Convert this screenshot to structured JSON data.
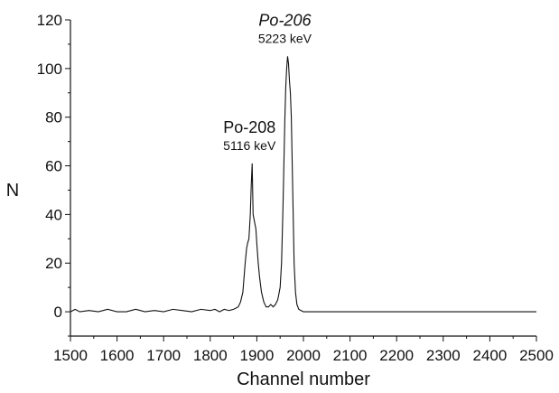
{
  "chart_data": {
    "type": "line",
    "title": "",
    "xlabel": "Channel number",
    "ylabel": "N",
    "xlim": [
      1500,
      2500
    ],
    "ylim": [
      -10,
      120
    ],
    "x_ticks": [
      1500,
      1600,
      1700,
      1800,
      1900,
      2000,
      2100,
      2200,
      2300,
      2400,
      2500
    ],
    "y_ticks": [
      0,
      20,
      40,
      60,
      80,
      100,
      120
    ],
    "grid": false,
    "legend": "none",
    "series": [
      {
        "x": [
          1500,
          1510,
          1520,
          1540,
          1560,
          1580,
          1600,
          1620,
          1640,
          1660,
          1680,
          1700,
          1720,
          1740,
          1760,
          1780,
          1800,
          1810,
          1820,
          1830,
          1840,
          1850,
          1860,
          1865,
          1870,
          1875,
          1878,
          1880,
          1883,
          1886,
          1888,
          1890,
          1892,
          1894,
          1896,
          1898,
          1900,
          1903,
          1906,
          1910,
          1915,
          1920,
          1925,
          1930,
          1935,
          1940,
          1945,
          1950,
          1953,
          1956,
          1958,
          1960,
          1962,
          1964,
          1966,
          1968,
          1970,
          1972,
          1974,
          1976,
          1978,
          1980,
          1983,
          1986,
          1990,
          1995,
          2000,
          2050,
          2100,
          2150,
          2200,
          2250,
          2300,
          2350,
          2400,
          2450,
          2500
        ],
        "values": [
          0,
          1,
          0,
          0.5,
          0,
          1,
          0,
          0,
          1,
          0,
          0.5,
          0,
          1,
          0.5,
          0,
          1,
          0.5,
          1,
          0,
          1,
          0.5,
          1,
          2,
          4,
          8,
          20,
          26,
          28,
          30,
          40,
          52,
          61,
          40,
          38,
          36,
          34,
          28,
          20,
          14,
          8,
          4,
          2,
          2,
          3,
          2,
          3,
          5,
          10,
          20,
          42,
          60,
          78,
          92,
          100,
          105,
          102,
          95,
          90,
          80,
          60,
          40,
          20,
          8,
          3,
          1,
          0.5,
          0,
          0,
          0,
          0,
          0,
          0,
          0,
          0,
          0,
          0,
          0
        ]
      }
    ],
    "annotations": [
      {
        "name": "Po-208",
        "energy": "5116 keV",
        "x": 1890,
        "y": 61
      },
      {
        "name": "Po-206",
        "energy": "5223 keV",
        "x": 1966,
        "y": 105
      }
    ]
  }
}
